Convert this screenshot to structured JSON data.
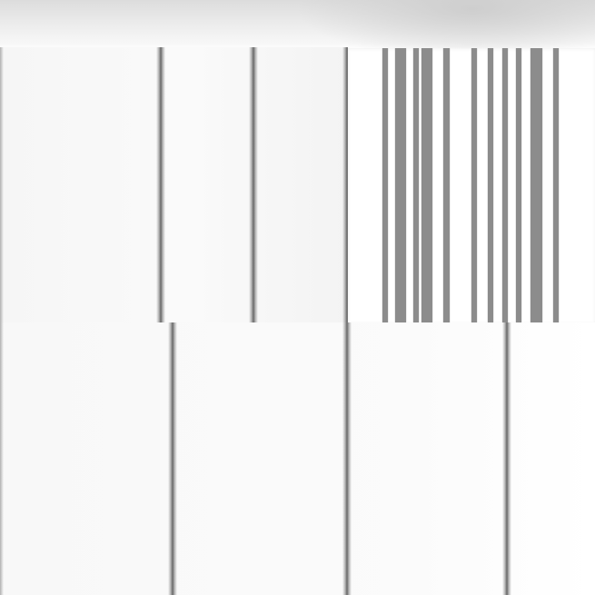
{
  "image": {
    "description_type": "abstract-stripe-pattern",
    "background_color": "#ffffff",
    "stripe_color": "#8c8c8c",
    "haze_color": "#dcdcdc"
  }
}
